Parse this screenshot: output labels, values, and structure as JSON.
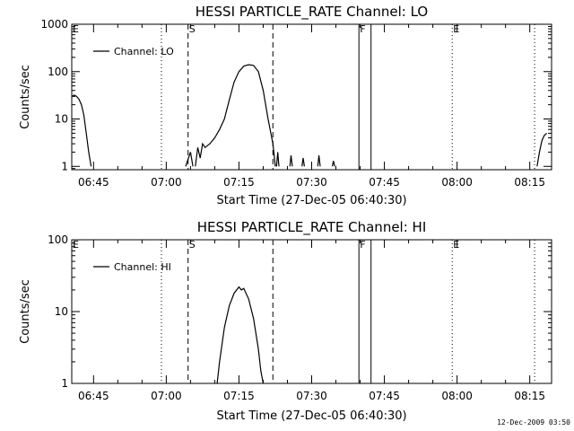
{
  "chart_data": [
    {
      "type": "line",
      "title": "HESSI PARTICLE_RATE Channel: LO",
      "xlabel": "Start Time (27-Dec-05 06:40:30)",
      "ylabel": "Counts/sec",
      "xlim": [
        "06:40:30",
        "08:19:30"
      ],
      "ylim": [
        0.85,
        1000
      ],
      "yscale": "log",
      "x_ticks": [
        "06:45",
        "07:00",
        "07:15",
        "07:30",
        "07:45",
        "08:00",
        "08:15"
      ],
      "y_ticks": [
        "1",
        "10",
        "100",
        "1000"
      ],
      "legend": {
        "label": "Channel: LO",
        "position": "top-left"
      },
      "series": [
        {
          "name": "Channel: LO",
          "segments": [
            [
              [
                "06:40:30",
                30
              ],
              [
                "06:41:00",
                32
              ],
              [
                "06:41:30",
                30
              ],
              [
                "06:42:00",
                26
              ],
              [
                "06:42:30",
                20
              ],
              [
                "06:43:00",
                12
              ],
              [
                "06:43:30",
                5
              ],
              [
                "06:44:00",
                2
              ],
              [
                "06:44:30",
                1
              ]
            ],
            [
              [
                "07:04:00",
                1
              ],
              [
                "07:05:00",
                2
              ],
              [
                "07:05:30",
                1
              ]
            ],
            [
              [
                "07:06:00",
                1
              ],
              [
                "07:06:30",
                2.5
              ],
              [
                "07:07:00",
                1.5
              ],
              [
                "07:07:30",
                3
              ],
              [
                "07:08:00",
                2.5
              ],
              [
                "07:09:00",
                3
              ],
              [
                "07:10:00",
                4
              ],
              [
                "07:11:00",
                6
              ],
              [
                "07:12:00",
                10
              ],
              [
                "07:13:00",
                25
              ],
              [
                "07:14:00",
                60
              ],
              [
                "07:15:00",
                100
              ],
              [
                "07:16:00",
                130
              ],
              [
                "07:17:00",
                140
              ],
              [
                "07:18:00",
                135
              ],
              [
                "07:19:00",
                100
              ],
              [
                "07:20:00",
                40
              ],
              [
                "07:21:00",
                10
              ],
              [
                "07:22:00",
                3
              ],
              [
                "07:22:30",
                1
              ]
            ],
            [
              [
                "07:22:45",
                1
              ],
              [
                "07:23:00",
                2
              ],
              [
                "07:23:15",
                1
              ]
            ],
            [
              [
                "07:25:30",
                1
              ],
              [
                "07:25:45",
                1.7
              ],
              [
                "07:26:00",
                1
              ]
            ],
            [
              [
                "07:28:00",
                1
              ],
              [
                "07:28:15",
                1.5
              ],
              [
                "07:28:30",
                1
              ]
            ],
            [
              [
                "07:31:15",
                1
              ],
              [
                "07:31:30",
                1.7
              ],
              [
                "07:31:45",
                1
              ]
            ],
            [
              [
                "07:34:15",
                1
              ],
              [
                "07:34:30",
                1.3
              ],
              [
                "07:34:45",
                1
              ]
            ],
            [
              [
                "08:16:30",
                1
              ],
              [
                "08:17:00",
                2
              ],
              [
                "08:17:30",
                3.5
              ],
              [
                "08:18:00",
                4.5
              ],
              [
                "08:18:30",
                5
              ]
            ]
          ]
        }
      ],
      "markers": [
        {
          "label": "E",
          "time": "06:40:30",
          "style": "dotted"
        },
        {
          "label": "S",
          "time": "07:04:30",
          "style": "dashed"
        },
        {
          "label": "",
          "time": "06:59:00",
          "style": "dotted"
        },
        {
          "label": "",
          "time": "07:22:00",
          "style": "dashed"
        },
        {
          "label": "F",
          "time": "07:39:45",
          "style": "solid"
        },
        {
          "label": "",
          "time": "07:42:15",
          "style": "solid"
        },
        {
          "label": "E",
          "time": "07:59:00",
          "style": "dotted"
        },
        {
          "label": "",
          "time": "08:16:00",
          "style": "dotted"
        }
      ]
    },
    {
      "type": "line",
      "title": "HESSI PARTICLE_RATE Channel: HI",
      "xlabel": "Start Time (27-Dec-05 06:40:30)",
      "ylabel": "Counts/sec",
      "xlim": [
        "06:40:30",
        "08:19:30"
      ],
      "ylim": [
        1,
        100
      ],
      "yscale": "log",
      "x_ticks": [
        "06:45",
        "07:00",
        "07:15",
        "07:30",
        "07:45",
        "08:00",
        "08:15"
      ],
      "y_ticks": [
        "1",
        "10",
        "100"
      ],
      "legend": {
        "label": "Channel: HI",
        "position": "top-left"
      },
      "series": [
        {
          "name": "Channel: HI",
          "segments": [
            [
              [
                "07:10:30",
                1
              ],
              [
                "07:11:00",
                2
              ],
              [
                "07:12:00",
                6
              ],
              [
                "07:13:00",
                12
              ],
              [
                "07:14:00",
                18
              ],
              [
                "07:15:00",
                22
              ],
              [
                "07:15:30",
                20
              ],
              [
                "07:16:00",
                21
              ],
              [
                "07:17:00",
                15
              ],
              [
                "07:18:00",
                8
              ],
              [
                "07:19:00",
                3
              ],
              [
                "07:19:30",
                1.5
              ],
              [
                "07:20:00",
                1
              ]
            ]
          ]
        }
      ],
      "markers": [
        {
          "label": "E",
          "time": "06:40:30",
          "style": "dotted"
        },
        {
          "label": "S",
          "time": "07:04:30",
          "style": "dashed"
        },
        {
          "label": "",
          "time": "06:59:00",
          "style": "dotted"
        },
        {
          "label": "",
          "time": "07:22:00",
          "style": "dashed"
        },
        {
          "label": "F",
          "time": "07:39:45",
          "style": "solid"
        },
        {
          "label": "",
          "time": "07:42:15",
          "style": "solid"
        },
        {
          "label": "E",
          "time": "07:59:00",
          "style": "dotted"
        },
        {
          "label": "",
          "time": "08:16:00",
          "style": "dotted"
        }
      ]
    }
  ],
  "footer": {
    "timestamp": "12-Dec-2009 03:50"
  }
}
